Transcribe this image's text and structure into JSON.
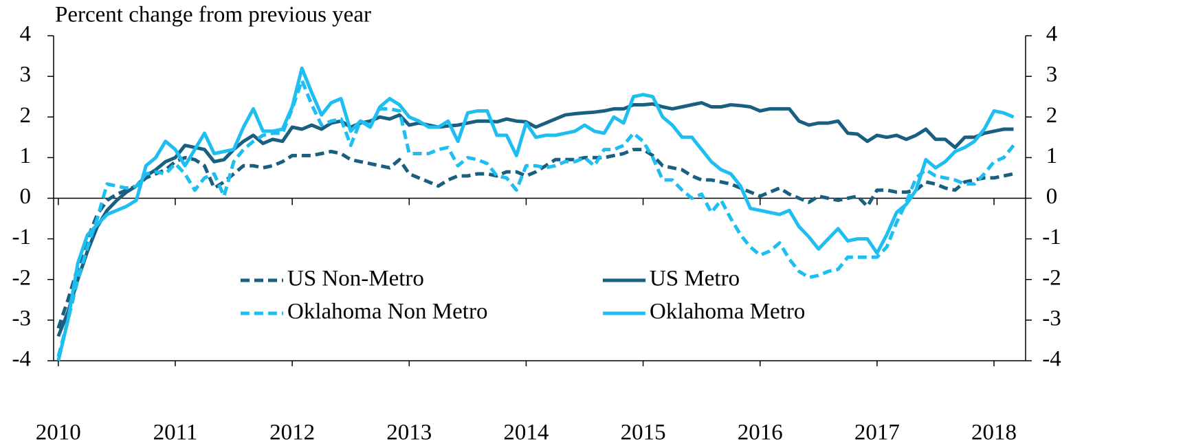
{
  "chart_data": {
    "type": "line",
    "title": "Percent change from previous year",
    "x": [
      2010,
      2010.083,
      2010.167,
      2010.25,
      2010.333,
      2010.417,
      2010.5,
      2010.583,
      2010.667,
      2010.75,
      2010.833,
      2010.917,
      2011,
      2011.083,
      2011.167,
      2011.25,
      2011.333,
      2011.417,
      2011.5,
      2011.583,
      2011.667,
      2011.75,
      2011.833,
      2011.917,
      2012,
      2012.083,
      2012.167,
      2012.25,
      2012.333,
      2012.417,
      2012.5,
      2012.583,
      2012.667,
      2012.75,
      2012.833,
      2012.917,
      2013,
      2013.083,
      2013.167,
      2013.25,
      2013.333,
      2013.417,
      2013.5,
      2013.583,
      2013.667,
      2013.75,
      2013.833,
      2013.917,
      2014,
      2014.083,
      2014.167,
      2014.25,
      2014.333,
      2014.417,
      2014.5,
      2014.583,
      2014.667,
      2014.75,
      2014.833,
      2014.917,
      2015,
      2015.083,
      2015.167,
      2015.25,
      2015.333,
      2015.417,
      2015.5,
      2015.583,
      2015.667,
      2015.75,
      2015.833,
      2015.917,
      2016,
      2016.083,
      2016.167,
      2016.25,
      2016.333,
      2016.417,
      2016.5,
      2016.583,
      2016.667,
      2016.75,
      2016.833,
      2016.917,
      2017,
      2017.083,
      2017.167,
      2017.25,
      2017.333,
      2017.417,
      2017.5,
      2017.583,
      2017.667,
      2017.75,
      2017.833,
      2017.917,
      2018,
      2018.083,
      2018.167
    ],
    "series": [
      {
        "name": "US Non-Metro",
        "color": "#1a5f80",
        "dashed": true,
        "values": [
          -3.2,
          -2.5,
          -1.7,
          -1.0,
          -0.4,
          -0.05,
          0.1,
          0.2,
          0.3,
          0.5,
          0.6,
          0.7,
          0.9,
          1.0,
          0.95,
          0.8,
          0.25,
          0.4,
          0.6,
          0.8,
          0.8,
          0.75,
          0.8,
          0.9,
          1.05,
          1.05,
          1.05,
          1.1,
          1.15,
          1.1,
          0.95,
          0.9,
          0.85,
          0.8,
          0.75,
          0.95,
          0.6,
          0.5,
          0.4,
          0.3,
          0.45,
          0.55,
          0.55,
          0.6,
          0.6,
          0.55,
          0.65,
          0.65,
          0.55,
          0.65,
          0.8,
          0.95,
          0.95,
          0.95,
          1.0,
          1.0,
          1.0,
          1.05,
          1.1,
          1.2,
          1.2,
          1.05,
          0.8,
          0.75,
          0.7,
          0.55,
          0.45,
          0.45,
          0.4,
          0.35,
          0.25,
          0.15,
          0.05,
          0.15,
          0.25,
          0.1,
          0.0,
          -0.1,
          0.05,
          0.0,
          -0.05,
          0.0,
          0.05,
          -0.2,
          0.2,
          0.2,
          0.15,
          0.15,
          0.2,
          0.4,
          0.35,
          0.25,
          0.2,
          0.4,
          0.45,
          0.5,
          0.5,
          0.55,
          0.6
        ]
      },
      {
        "name": "US Metro",
        "color": "#1a5f80",
        "dashed": false,
        "values": [
          -3.4,
          -2.8,
          -2.0,
          -1.3,
          -0.7,
          -0.3,
          -0.05,
          0.15,
          0.3,
          0.55,
          0.7,
          0.9,
          1.0,
          1.3,
          1.25,
          1.2,
          0.9,
          0.95,
          1.2,
          1.4,
          1.55,
          1.35,
          1.45,
          1.4,
          1.75,
          1.7,
          1.8,
          1.7,
          1.85,
          1.9,
          1.75,
          1.85,
          1.9,
          2.0,
          1.95,
          2.05,
          1.8,
          1.85,
          1.8,
          1.75,
          1.78,
          1.8,
          1.85,
          1.9,
          1.9,
          1.88,
          1.95,
          1.9,
          1.88,
          1.75,
          1.85,
          1.95,
          2.05,
          2.08,
          2.1,
          2.12,
          2.15,
          2.2,
          2.2,
          2.3,
          2.3,
          2.32,
          2.25,
          2.2,
          2.25,
          2.3,
          2.35,
          2.25,
          2.25,
          2.3,
          2.28,
          2.25,
          2.15,
          2.2,
          2.2,
          2.2,
          1.9,
          1.8,
          1.85,
          1.85,
          1.9,
          1.6,
          1.58,
          1.4,
          1.55,
          1.5,
          1.55,
          1.45,
          1.55,
          1.7,
          1.45,
          1.45,
          1.25,
          1.5,
          1.5,
          1.6,
          1.65,
          1.7,
          1.7
        ]
      },
      {
        "name": "Oklahoma Non Metro",
        "color": "#1fbef0",
        "dashed": true,
        "values": [
          -3.9,
          -3.0,
          -2.0,
          -1.2,
          -0.5,
          0.35,
          0.3,
          0.25,
          0.3,
          0.6,
          0.65,
          0.6,
          0.85,
          0.6,
          0.2,
          0.5,
          0.6,
          0.05,
          0.9,
          1.2,
          1.4,
          1.55,
          1.6,
          1.6,
          2.2,
          2.9,
          2.3,
          1.8,
          1.9,
          1.95,
          1.3,
          1.9,
          1.8,
          2.2,
          2.2,
          2.15,
          1.1,
          1.1,
          1.1,
          1.2,
          1.25,
          0.8,
          1.0,
          0.95,
          0.85,
          0.55,
          0.5,
          0.2,
          0.8,
          0.8,
          0.75,
          0.8,
          0.9,
          0.9,
          1.0,
          0.8,
          1.2,
          1.2,
          1.3,
          1.6,
          1.4,
          1.0,
          0.45,
          0.45,
          0.2,
          0.0,
          0.1,
          -0.35,
          -0.05,
          -0.5,
          -0.9,
          -1.2,
          -1.4,
          -1.3,
          -1.1,
          -1.5,
          -1.8,
          -1.95,
          -1.9,
          -1.8,
          -1.75,
          -1.45,
          -1.45,
          -1.45,
          -1.45,
          -1.2,
          -0.6,
          -0.1,
          0.5,
          0.7,
          0.55,
          0.5,
          0.45,
          0.35,
          0.35,
          0.6,
          0.9,
          1.0,
          1.3
        ]
      },
      {
        "name": "Oklahoma Metro",
        "color": "#1fbef0",
        "dashed": false,
        "values": [
          -4.0,
          -3.0,
          -1.6,
          -0.9,
          -0.65,
          -0.4,
          -0.3,
          -0.2,
          -0.05,
          0.8,
          1.0,
          1.4,
          1.2,
          0.8,
          1.2,
          1.6,
          1.1,
          1.15,
          1.2,
          1.75,
          2.2,
          1.65,
          1.65,
          1.7,
          2.25,
          3.2,
          2.6,
          2.05,
          2.35,
          2.45,
          1.65,
          1.9,
          1.75,
          2.25,
          2.45,
          2.3,
          2.0,
          1.9,
          1.75,
          1.75,
          1.9,
          1.4,
          2.1,
          2.15,
          2.15,
          1.55,
          1.55,
          1.05,
          1.85,
          1.5,
          1.55,
          1.55,
          1.6,
          1.65,
          1.8,
          1.65,
          1.6,
          2.0,
          1.85,
          2.5,
          2.55,
          2.5,
          2.0,
          1.8,
          1.5,
          1.5,
          1.2,
          0.9,
          0.7,
          0.6,
          0.3,
          -0.25,
          -0.3,
          -0.35,
          -0.4,
          -0.3,
          -0.7,
          -0.95,
          -1.25,
          -1.0,
          -0.75,
          -1.05,
          -1.0,
          -1.0,
          -1.35,
          -0.9,
          -0.35,
          -0.15,
          0.2,
          0.95,
          0.75,
          0.9,
          1.15,
          1.25,
          1.4,
          1.7,
          2.15,
          2.1,
          2.0
        ]
      }
    ],
    "xlim": [
      2009.96,
      2018.27
    ],
    "xticks": [
      2010,
      2011,
      2012,
      2013,
      2014,
      2015,
      2016,
      2017,
      2018
    ],
    "ylim": [
      -4,
      4
    ],
    "yticks": [
      -4,
      -3,
      -2,
      -1,
      0,
      1,
      2,
      3,
      4
    ],
    "y2lim": [
      -4,
      4
    ],
    "y2ticks": [
      -4,
      -3,
      -2,
      -1,
      0,
      1,
      2,
      3,
      4
    ]
  }
}
